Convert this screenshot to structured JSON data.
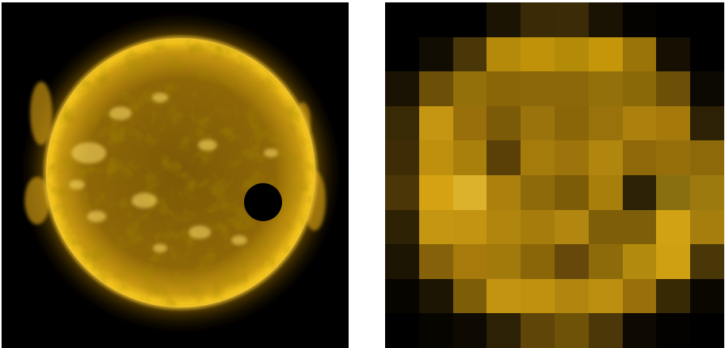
{
  "images": {
    "left": {
      "subject": "sun-with-transiting-planet-silhouette",
      "palette": {
        "corona": "#b07f00",
        "disk": "#9a6c06",
        "limb": "#f2c21a",
        "highlight": "#ffe06a",
        "planet": "#000000",
        "background": "#000000"
      }
    },
    "right": {
      "subject": "pixelated-sun-10x10",
      "grid": [
        [
          "#000000",
          "#000000",
          "#000000",
          "#1c1402",
          "#3a2b06",
          "#3b2c07",
          "#1a1303",
          "#050300",
          "#000000",
          "#000000"
        ],
        [
          "#000000",
          "#120d02",
          "#4a3707",
          "#b58a0a",
          "#c0920a",
          "#b48b09",
          "#c5950a",
          "#9a7409",
          "#161003",
          "#000000"
        ],
        [
          "#1a1303",
          "#6d5008",
          "#93700a",
          "#8a6609",
          "#8d680a",
          "#8c680a",
          "#93700a",
          "#8a6909",
          "#6c5007",
          "#0c0902"
        ],
        [
          "#392a06",
          "#c49612",
          "#996f0b",
          "#7b5a08",
          "#9b730c",
          "#8a6609",
          "#9a720b",
          "#ab800d",
          "#a6790b",
          "#2c2005"
        ],
        [
          "#3d2c06",
          "#bf900d",
          "#a9800c",
          "#5a4007",
          "#a57b0b",
          "#9d740b",
          "#b1860e",
          "#8f6909",
          "#966f0b",
          "#8e690a"
        ],
        [
          "#4b3607",
          "#d4a212",
          "#dcb12c",
          "#ab800d",
          "#8f6a0a",
          "#7d5c08",
          "#a97f0c",
          "#2c2005",
          "#8a6f10",
          "#9c7a0e"
        ],
        [
          "#2e2205",
          "#c49612",
          "#c39411",
          "#b1860e",
          "#a67c0c",
          "#b28710",
          "#7e5e09",
          "#7d5f09",
          "#d0a214",
          "#a57e0d"
        ],
        [
          "#1d1503",
          "#856209",
          "#a67b0c",
          "#a27a0c",
          "#8a6609",
          "#66490a",
          "#8d6a0a",
          "#b28a0d",
          "#d0a013",
          "#4a3707"
        ],
        [
          "#070500",
          "#1d1503",
          "#7e5d09",
          "#c39411",
          "#c0900f",
          "#b1860e",
          "#bb8e10",
          "#996f0b",
          "#382905",
          "#0a0701"
        ],
        [
          "#000000",
          "#070500",
          "#0e0a02",
          "#2c2005",
          "#5f4508",
          "#6e5208",
          "#4b3707",
          "#0e0a02",
          "#030200",
          "#000000"
        ]
      ]
    }
  }
}
